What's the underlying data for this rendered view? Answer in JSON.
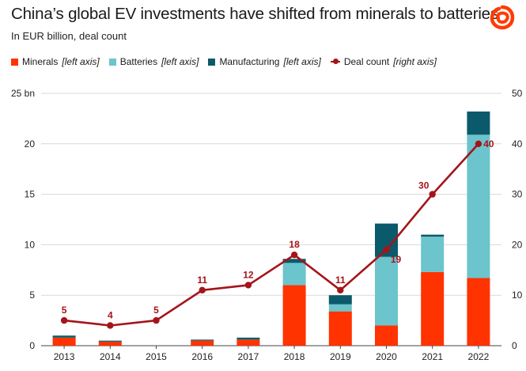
{
  "title": "China’s global EV investments have shifted from minerals to batteries",
  "subtitle": "In EUR billion, deal count",
  "colors": {
    "minerals": "#ff3300",
    "batteries": "#6cc4cc",
    "manufacturing": "#0b5a6b",
    "deal_count": "#a5141a",
    "logo": "#ff3b00"
  },
  "legend": [
    {
      "key": "minerals",
      "name": "Minerals",
      "note": "[left axis]"
    },
    {
      "key": "batteries",
      "name": "Batteries",
      "note": "[left axis]"
    },
    {
      "key": "manufacturing",
      "name": "Manufacturing",
      "note": "[left axis]"
    },
    {
      "key": "deal_count",
      "name": "Deal count",
      "note": "[right axis]"
    }
  ],
  "chart_data": {
    "type": "bar",
    "stacked": true,
    "categories": [
      "2013",
      "2014",
      "2015",
      "2016",
      "2017",
      "2018",
      "2019",
      "2020",
      "2021",
      "2022"
    ],
    "series": [
      {
        "name": "Minerals",
        "axis": "left",
        "values": [
          0.8,
          0.4,
          0.0,
          0.5,
          0.6,
          6.0,
          3.4,
          2.0,
          7.3,
          6.7
        ]
      },
      {
        "name": "Batteries",
        "axis": "left",
        "values": [
          0.0,
          0.0,
          0.0,
          0.0,
          0.0,
          2.2,
          0.7,
          6.8,
          3.5,
          14.2
        ]
      },
      {
        "name": "Manufacturing",
        "axis": "left",
        "values": [
          0.2,
          0.1,
          0.0,
          0.1,
          0.2,
          0.4,
          0.9,
          3.3,
          0.2,
          2.3
        ]
      },
      {
        "name": "Deal count",
        "axis": "right",
        "type": "line",
        "values": [
          5,
          4,
          5,
          11,
          12,
          18,
          11,
          19,
          30,
          40
        ]
      }
    ],
    "left_axis": {
      "ylim": [
        0,
        25
      ],
      "ticks": [
        "0",
        "5",
        "10",
        "15",
        "20",
        "25 bn"
      ]
    },
    "right_axis": {
      "ylim": [
        0,
        50
      ],
      "ticks": [
        "0",
        "10",
        "20",
        "30",
        "40",
        "50"
      ]
    },
    "grid": true
  }
}
